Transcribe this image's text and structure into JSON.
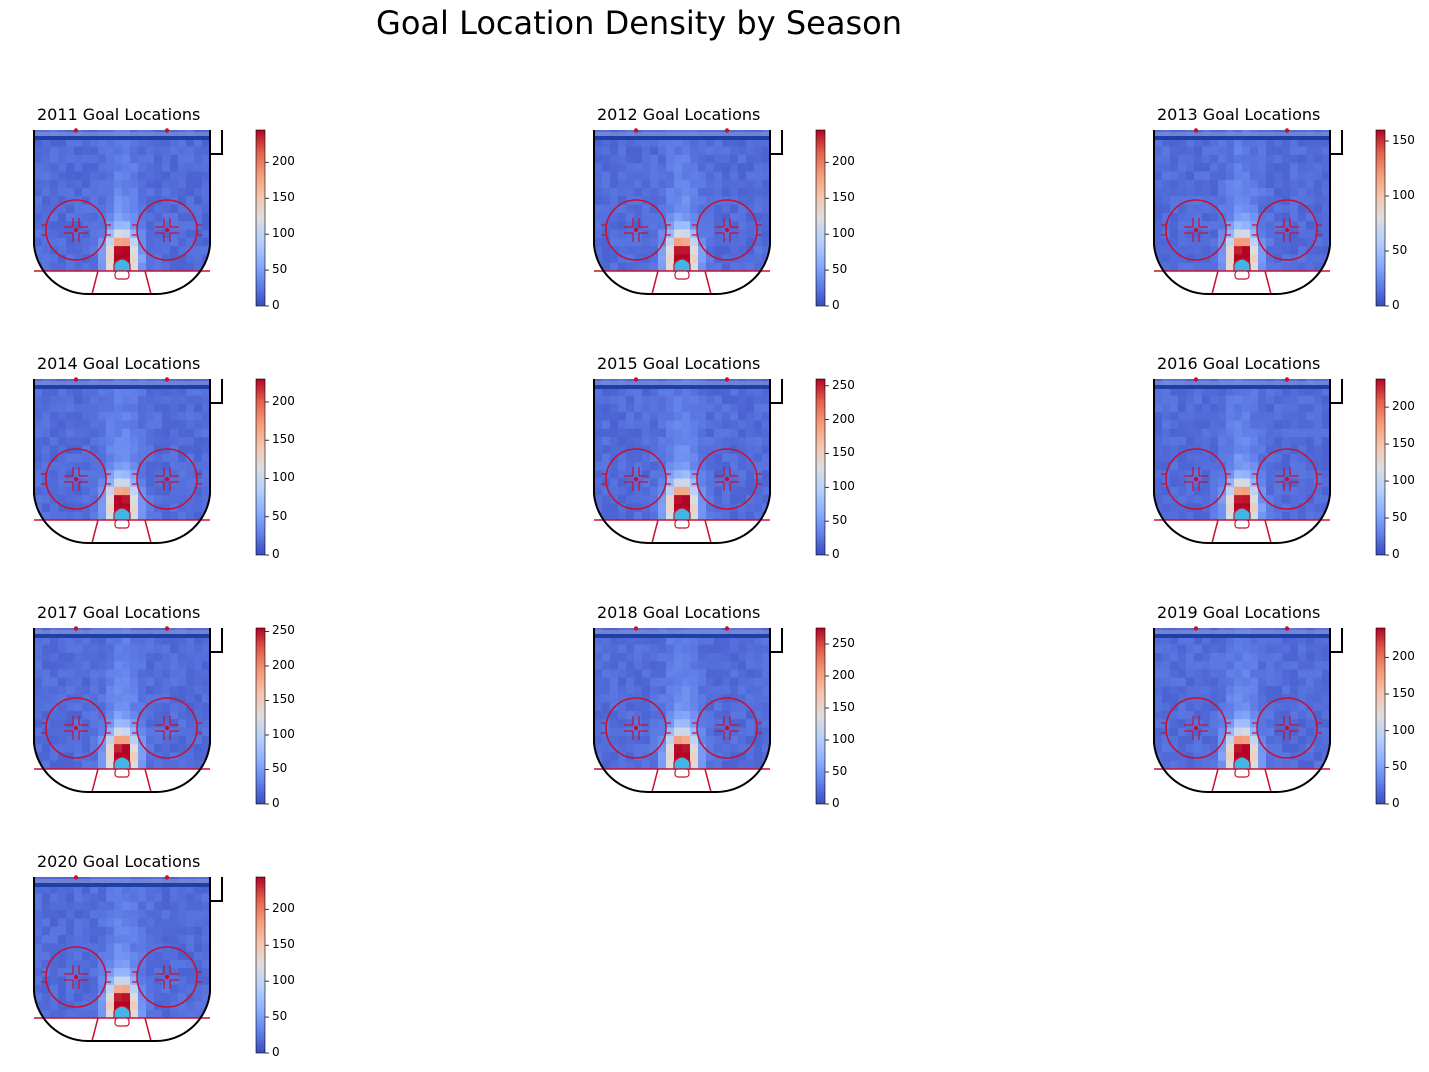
{
  "figure": {
    "title": "Goal Location Density by Season"
  },
  "colors": {
    "colormap": "coolwarm",
    "low": "#3b4cc0",
    "mid": "#dddddd",
    "high": "#b40426",
    "rink_lines": "#c8102e",
    "blue_line": "#1f3fa8",
    "crease": "#41b6e6",
    "boards": "#000000"
  },
  "chart_data": [
    {
      "type": "heatmap",
      "title": "2011 Goal Locations",
      "colorbar_ticks": [
        0,
        50,
        100,
        150,
        200
      ],
      "vmin": 0,
      "vmax": 245
    },
    {
      "type": "heatmap",
      "title": "2012 Goal Locations",
      "colorbar_ticks": [
        0,
        50,
        100,
        150,
        200
      ],
      "vmin": 0,
      "vmax": 245
    },
    {
      "type": "heatmap",
      "title": "2013 Goal Locations",
      "colorbar_ticks": [
        0,
        50,
        100,
        150
      ],
      "vmin": 0,
      "vmax": 160
    },
    {
      "type": "heatmap",
      "title": "2014 Goal Locations",
      "colorbar_ticks": [
        0,
        50,
        100,
        150,
        200
      ],
      "vmin": 0,
      "vmax": 230
    },
    {
      "type": "heatmap",
      "title": "2015 Goal Locations",
      "colorbar_ticks": [
        0,
        50,
        100,
        150,
        200,
        250
      ],
      "vmin": 0,
      "vmax": 260
    },
    {
      "type": "heatmap",
      "title": "2016 Goal Locations",
      "colorbar_ticks": [
        0,
        50,
        100,
        150,
        200
      ],
      "vmin": 0,
      "vmax": 238
    },
    {
      "type": "heatmap",
      "title": "2017 Goal Locations",
      "colorbar_ticks": [
        0,
        50,
        100,
        150,
        200,
        250
      ],
      "vmin": 0,
      "vmax": 255
    },
    {
      "type": "heatmap",
      "title": "2018 Goal Locations",
      "colorbar_ticks": [
        0,
        50,
        100,
        150,
        200,
        250
      ],
      "vmin": 0,
      "vmax": 275
    },
    {
      "type": "heatmap",
      "title": "2019 Goal Locations",
      "colorbar_ticks": [
        0,
        50,
        100,
        150,
        200
      ],
      "vmin": 0,
      "vmax": 240
    },
    {
      "type": "heatmap",
      "title": "2020 Goal Locations",
      "colorbar_ticks": [
        0,
        50,
        100,
        150,
        200
      ],
      "vmin": 0,
      "vmax": 245
    }
  ]
}
